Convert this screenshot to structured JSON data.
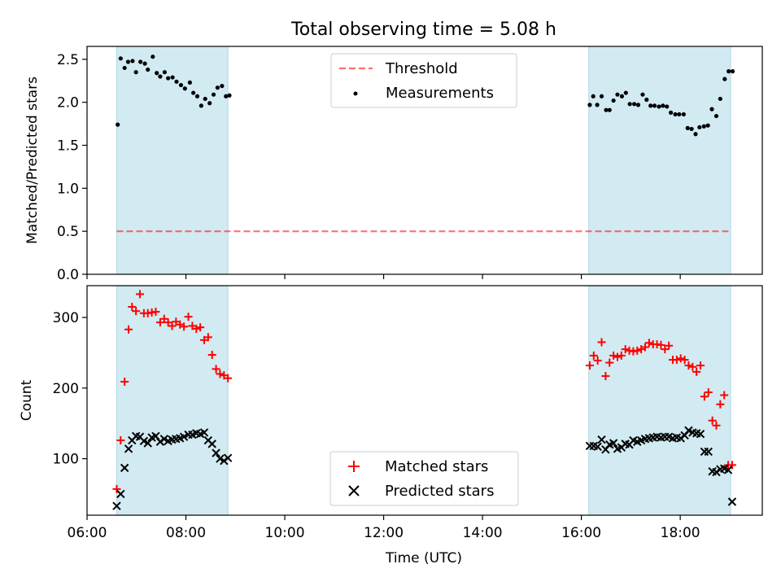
{
  "title": "Total observing time = 5.08 h",
  "colors": {
    "shade": "#add8e6",
    "threshold": "#ff0000",
    "matched": "#ff0000",
    "predicted": "#000000",
    "measurement": "#000000"
  },
  "chart_data": [
    {
      "type": "scatter",
      "panel": "top",
      "ylabel": "Matched/Predicted stars",
      "xlim": [
        6.0,
        19.66
      ],
      "ylim": [
        0.0,
        2.65
      ],
      "yticks": [
        0.0,
        0.5,
        1.0,
        1.5,
        2.0,
        2.5
      ],
      "ytick_labels": [
        "0.0",
        "0.5",
        "1.0",
        "1.5",
        "2.0",
        "2.5"
      ],
      "shaded_intervals": [
        [
          6.6,
          8.85
        ],
        [
          16.15,
          19.02
        ]
      ],
      "legend": {
        "position": "upper center",
        "entries": [
          "Threshold",
          "Measurements"
        ]
      },
      "series": [
        {
          "name": "Threshold",
          "kind": "hline",
          "y": 0.5,
          "x_range": [
            6.6,
            19.02
          ],
          "style": "dashed"
        },
        {
          "name": "Measurements",
          "kind": "points",
          "x": [
            6.62,
            6.68,
            6.76,
            6.83,
            6.92,
            6.99,
            7.08,
            7.17,
            7.23,
            7.33,
            7.41,
            7.48,
            7.57,
            7.64,
            7.73,
            7.81,
            7.9,
            7.98,
            8.08,
            8.15,
            8.23,
            8.31,
            8.39,
            8.48,
            8.56,
            8.64,
            8.73,
            8.81,
            8.88,
            16.17,
            16.24,
            16.32,
            16.41,
            16.5,
            16.57,
            16.65,
            16.73,
            16.82,
            16.9,
            16.98,
            17.07,
            17.15,
            17.24,
            17.32,
            17.4,
            17.48,
            17.57,
            17.65,
            17.73,
            17.81,
            17.9,
            17.98,
            18.07,
            18.15,
            18.23,
            18.31,
            18.39,
            18.48,
            18.56,
            18.64,
            18.73,
            18.81,
            18.9,
            18.98,
            19.06
          ],
          "y": [
            1.74,
            2.51,
            2.4,
            2.47,
            2.48,
            2.35,
            2.47,
            2.45,
            2.38,
            2.53,
            2.34,
            2.3,
            2.35,
            2.28,
            2.29,
            2.24,
            2.2,
            2.16,
            2.23,
            2.11,
            2.07,
            1.96,
            2.04,
            1.99,
            2.09,
            2.17,
            2.19,
            2.07,
            2.08,
            1.97,
            2.07,
            1.97,
            2.07,
            1.91,
            1.91,
            2.02,
            2.09,
            2.07,
            2.11,
            1.98,
            1.98,
            1.97,
            2.09,
            2.03,
            1.96,
            1.96,
            1.95,
            1.96,
            1.95,
            1.88,
            1.86,
            1.86,
            1.86,
            1.7,
            1.69,
            1.63,
            1.71,
            1.72,
            1.73,
            1.92,
            1.84,
            2.04,
            2.27,
            2.36,
            2.36
          ]
        }
      ]
    },
    {
      "type": "scatter",
      "panel": "bottom",
      "xlabel": "Time (UTC)",
      "ylabel": "Count",
      "xlim": [
        6.0,
        19.66
      ],
      "ylim": [
        20,
        345
      ],
      "xticks": [
        6,
        8,
        10,
        12,
        14,
        16,
        18
      ],
      "xtick_labels": [
        "06:00",
        "08:00",
        "10:00",
        "12:00",
        "14:00",
        "16:00",
        "18:00"
      ],
      "yticks": [
        100,
        200,
        300
      ],
      "ytick_labels": [
        "100",
        "200",
        "300"
      ],
      "shaded_intervals": [
        [
          6.6,
          8.85
        ],
        [
          16.15,
          19.02
        ]
      ],
      "legend": {
        "position": "lower center",
        "entries": [
          "Matched stars",
          "Predicted stars"
        ]
      },
      "series": [
        {
          "name": "Matched stars",
          "marker": "+",
          "x": [
            6.6,
            6.68,
            6.76,
            6.84,
            6.91,
            6.99,
            7.07,
            7.15,
            7.23,
            7.31,
            7.39,
            7.48,
            7.56,
            7.64,
            7.72,
            7.8,
            7.88,
            7.96,
            8.05,
            8.13,
            8.21,
            8.29,
            8.37,
            8.45,
            8.53,
            8.61,
            8.69,
            8.77,
            8.85,
            16.17,
            16.25,
            16.33,
            16.41,
            16.49,
            16.57,
            16.65,
            16.73,
            16.81,
            16.89,
            16.97,
            17.05,
            17.13,
            17.21,
            17.29,
            17.37,
            17.45,
            17.53,
            17.61,
            17.69,
            17.77,
            17.85,
            17.93,
            18.01,
            18.09,
            18.17,
            18.25,
            18.33,
            18.41,
            18.49,
            18.57,
            18.65,
            18.73,
            18.81,
            18.89,
            18.97,
            19.05
          ],
          "y": [
            57,
            126,
            209,
            283,
            315,
            309,
            333,
            306,
            306,
            307,
            308,
            293,
            298,
            293,
            288,
            294,
            290,
            287,
            301,
            288,
            284,
            286,
            268,
            272,
            247,
            227,
            220,
            218,
            214,
            232,
            246,
            239,
            265,
            217,
            236,
            246,
            244,
            246,
            255,
            253,
            252,
            253,
            255,
            258,
            264,
            262,
            262,
            261,
            255,
            260,
            240,
            240,
            242,
            240,
            232,
            230,
            223,
            232,
            188,
            194,
            154,
            147,
            177,
            190,
            91,
            91
          ]
        },
        {
          "name": "Predicted stars",
          "marker": "x",
          "x": [
            6.6,
            6.68,
            6.76,
            6.84,
            6.91,
            6.99,
            7.07,
            7.15,
            7.23,
            7.31,
            7.39,
            7.48,
            7.56,
            7.64,
            7.72,
            7.8,
            7.88,
            7.96,
            8.05,
            8.13,
            8.21,
            8.29,
            8.37,
            8.45,
            8.53,
            8.61,
            8.69,
            8.77,
            8.85,
            16.17,
            16.25,
            16.33,
            16.41,
            16.49,
            16.57,
            16.65,
            16.73,
            16.81,
            16.89,
            16.97,
            17.05,
            17.13,
            17.21,
            17.29,
            17.37,
            17.45,
            17.53,
            17.61,
            17.69,
            17.77,
            17.85,
            17.93,
            18.01,
            18.09,
            18.17,
            18.25,
            18.33,
            18.41,
            18.49,
            18.57,
            18.65,
            18.73,
            18.81,
            18.89,
            18.97,
            19.05
          ],
          "y": [
            33,
            50,
            87,
            114,
            126,
            132,
            131,
            125,
            122,
            130,
            132,
            124,
            128,
            125,
            127,
            128,
            129,
            131,
            134,
            134,
            136,
            135,
            137,
            126,
            121,
            108,
            100,
            97,
            101,
            118,
            118,
            117,
            127,
            113,
            120,
            122,
            114,
            116,
            121,
            120,
            126,
            124,
            126,
            128,
            129,
            130,
            131,
            130,
            131,
            131,
            129,
            130,
            129,
            133,
            140,
            137,
            136,
            135,
            110,
            110,
            82,
            81,
            85,
            86,
            84,
            39
          ]
        }
      ]
    }
  ]
}
